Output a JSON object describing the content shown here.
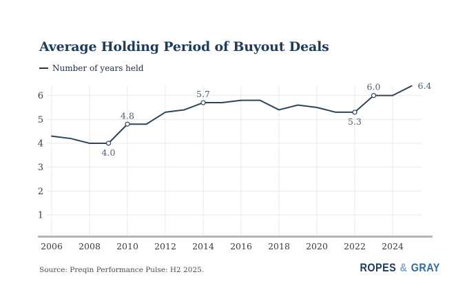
{
  "title": "Average Holding Period of Buyout Deals",
  "legend": {
    "label": "Number of years held"
  },
  "source": "Source: Preqin Performance Pulse: H2 2025.",
  "logo": {
    "part1": "ROPES",
    "amp": "&",
    "part2": "GRAY"
  },
  "colors": {
    "title": "#1d3b5a",
    "line": "#2d4358",
    "grid": "#e9e9e9",
    "axis": "#b5b5b5",
    "tick_label": "#3b3b3b",
    "point_label": "#4d5e72",
    "marker_fill": "#ffffff"
  },
  "chart_data": {
    "type": "line",
    "title": "Average Holding Period of Buyout Deals",
    "series": [
      {
        "name": "Number of years held",
        "x": [
          2006,
          2007,
          2008,
          2009,
          2010,
          2011,
          2012,
          2013,
          2014,
          2015,
          2016,
          2017,
          2018,
          2019,
          2020,
          2021,
          2022,
          2023,
          2024,
          2025
        ],
        "values": [
          4.3,
          4.2,
          4.0,
          4.0,
          4.8,
          4.8,
          5.3,
          5.4,
          5.7,
          5.7,
          5.8,
          5.8,
          5.4,
          5.6,
          5.5,
          5.3,
          5.3,
          6.0,
          6.0,
          6.4
        ]
      }
    ],
    "point_labels": [
      {
        "x": 2009,
        "value": 4.0,
        "text": "4.0",
        "placement": "below",
        "marker": true
      },
      {
        "x": 2010,
        "value": 4.8,
        "text": "4.8",
        "placement": "above",
        "marker": true
      },
      {
        "x": 2014,
        "value": 5.7,
        "text": "5.7",
        "placement": "above",
        "marker": true
      },
      {
        "x": 2022,
        "value": 5.3,
        "text": "5.3",
        "placement": "below",
        "marker": true
      },
      {
        "x": 2023,
        "value": 6.0,
        "text": "6.0",
        "placement": "above",
        "marker": true
      },
      {
        "x": 2025,
        "value": 6.4,
        "text": "6.4",
        "placement": "right",
        "marker": false
      }
    ],
    "xticks": [
      2006,
      2008,
      2010,
      2012,
      2014,
      2016,
      2018,
      2020,
      2022,
      2024
    ],
    "yticks": [
      1,
      2,
      3,
      4,
      5,
      6
    ],
    "xlim": [
      2006,
      2025
    ],
    "ylim": [
      0,
      6.6
    ],
    "grid": true,
    "legend_position": "top-left",
    "xlabel": "",
    "ylabel": ""
  }
}
